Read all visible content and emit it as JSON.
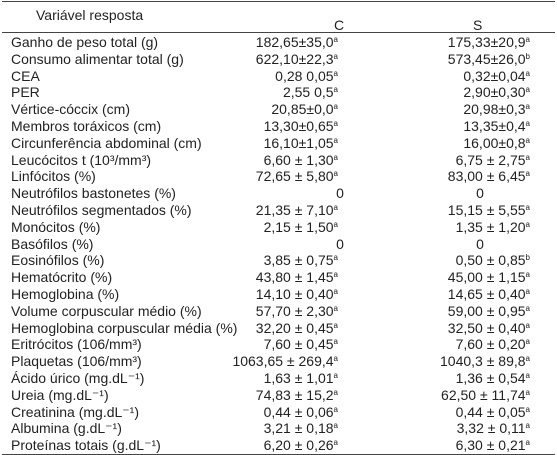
{
  "header": {
    "variable": "Variável resposta",
    "group_c": "C",
    "group_s": "S"
  },
  "rows": [
    {
      "label": "Ganho de peso total (g)",
      "c": "182,65±35,0",
      "c_sup": "a",
      "s": "175,33±20,9",
      "s_sup": "a"
    },
    {
      "label": "Consumo alimentar total (g)",
      "c": "622,10±22,3",
      "c_sup": "a",
      "s": "573,45±26,0",
      "s_sup": "b"
    },
    {
      "label": "CEA",
      "c": "0,28 0,05",
      "c_sup": "a",
      "s": "0,32±0,04",
      "s_sup": "a"
    },
    {
      "label": "PER",
      "c": "2,55 0,5",
      "c_sup": "a",
      "s": "2,90±0,30",
      "s_sup": "a"
    },
    {
      "label": "Vértice-cóccix (cm)",
      "c": "20,85±0,0",
      "c_sup": "a",
      "s": "20,98±0,3",
      "s_sup": "a"
    },
    {
      "label": "Membros toráxicos (cm)",
      "c": "13,30±0,65",
      "c_sup": "a",
      "s": "13,35±0,4",
      "s_sup": "a"
    },
    {
      "label": "Circunferência abdominal (cm)",
      "c": "16,10±1,05",
      "c_sup": "a",
      "s": "16,00±0,8",
      "s_sup": "a"
    },
    {
      "label": "Leucócitos t (10³/mm³)",
      "c": "6,60 ± 1,30",
      "c_sup": "a",
      "s": "6,75 ± 2,75",
      "s_sup": "a"
    },
    {
      "label": "Linfócitos (%)",
      "c": "72,65 ± 5,80",
      "c_sup": "a",
      "s": "83,00 ± 6,45",
      "s_sup": "a"
    },
    {
      "label": "Neutrófilos bastonetes  (%)",
      "c": "0",
      "c_sup": "",
      "s": "0",
      "s_sup": ""
    },
    {
      "label": "Neutrófilos segmentados (%)",
      "c": "21,35 ± 7,10",
      "c_sup": "a",
      "s": "15,15 ± 5,55",
      "s_sup": "a"
    },
    {
      "label": "Monócitos (%)",
      "c": "2,15 ± 1,50",
      "c_sup": "a",
      "s": "1,35 ± 1,20",
      "s_sup": "a"
    },
    {
      "label": "Basófilos (%)",
      "c": "0",
      "c_sup": "",
      "s": "0",
      "s_sup": ""
    },
    {
      "label": "Eosinófilos (%)",
      "c": "3,85 ± 0,75",
      "c_sup": "a",
      "s": "0,50 ± 0,85",
      "s_sup": "b"
    },
    {
      "label": "Hematócrito (%)",
      "c": "43,80 ± 1,45",
      "c_sup": "a",
      "s": "45,00 ± 1,15",
      "s_sup": "a"
    },
    {
      "label": "Hemoglobina (%)",
      "c": "14,10 ± 0,40",
      "c_sup": "a",
      "s": "14,65 ± 0,40",
      "s_sup": "a"
    },
    {
      "label": "Volume corpuscular médio (%)",
      "c": "57,70 ± 2,30",
      "c_sup": "a",
      "s": "59,00 ± 0,95",
      "s_sup": "a"
    },
    {
      "label": "Hemoglobina corpuscular média (%)",
      "c": "32,20 ± 0,45",
      "c_sup": "a",
      "s": "32,50 ± 0,40",
      "s_sup": "a"
    },
    {
      "label": "Eritrócitos (106/mm³)",
      "c": "7,60 ± 0,45",
      "c_sup": "a",
      "s": "7,60 ± 0,20",
      "s_sup": "a"
    },
    {
      "label": "Plaquetas (106/mm³)",
      "c": "1063,65 ± 269,4",
      "c_sup": "a",
      "s": "1040,3 ± 89,8",
      "s_sup": "a"
    },
    {
      "label": "Ácido úrico (mg.dL⁻¹)",
      "c": "1,63 ± 1,01",
      "c_sup": "a",
      "s": "1,36 ± 0,54",
      "s_sup": "a"
    },
    {
      "label": "Ureia (mg.dL⁻¹)",
      "c": "74,83 ± 15,2",
      "c_sup": "a",
      "s": "62,50 ± 11,74",
      "s_sup": "a"
    },
    {
      "label": "Creatinina (mg.dL⁻¹)",
      "c": "0,44 ± 0,06",
      "c_sup": "a",
      "s": "0,44 ± 0,05",
      "s_sup": "a"
    },
    {
      "label": "Albumina (g.dL⁻¹)",
      "c": "3,21 ± 0,18",
      "c_sup": "a",
      "s": "3,32 ± 0,11",
      "s_sup": "a"
    },
    {
      "label": "Proteínas totais (g.dL⁻¹)",
      "c": "6,20 ± 0,26",
      "c_sup": "a",
      "s": "6,30 ± 0,21",
      "s_sup": "a"
    }
  ]
}
